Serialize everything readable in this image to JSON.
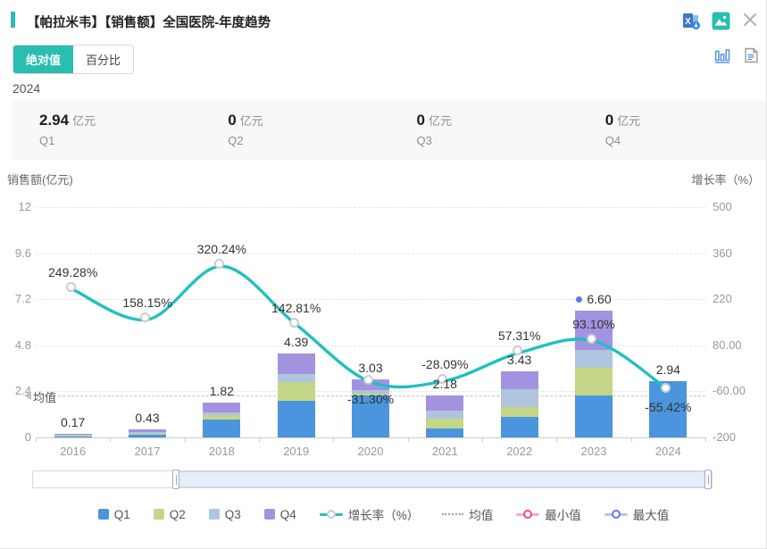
{
  "header": {
    "title": "【帕拉米韦】【销售额】全国医院-年度趋势",
    "icons": [
      "excel-export-icon",
      "image-export-icon",
      "close-icon",
      "bar-chart-view-icon",
      "report-view-icon"
    ]
  },
  "view_tabs": {
    "absolute": "绝对值",
    "percent": "百分比"
  },
  "period": {
    "year": "2024"
  },
  "summary": {
    "items": [
      {
        "value": "2.94",
        "unit": "亿元",
        "label": "Q1"
      },
      {
        "value": "0",
        "unit": "亿元",
        "label": "Q2"
      },
      {
        "value": "0",
        "unit": "亿元",
        "label": "Q3"
      },
      {
        "value": "0",
        "unit": "亿元",
        "label": "Q4"
      }
    ]
  },
  "chart_data": {
    "type": "bar",
    "title": "【帕拉米韦】【销售额】全国医院-年度趋势",
    "categories": [
      "2016",
      "2017",
      "2018",
      "2019",
      "2020",
      "2021",
      "2022",
      "2023",
      "2024"
    ],
    "series": [
      {
        "name": "Q1",
        "color": "#4a95dd",
        "values": [
          0.07,
          0.14,
          0.95,
          1.9,
          2.2,
          0.46,
          1.05,
          2.2,
          2.94
        ]
      },
      {
        "name": "Q2",
        "color": "#c4d687",
        "values": [
          0.03,
          0.06,
          0.2,
          1.0,
          0.08,
          0.5,
          0.55,
          1.45,
          0
        ]
      },
      {
        "name": "Q3",
        "color": "#aec5dd",
        "values": [
          0.03,
          0.08,
          0.17,
          0.4,
          0.2,
          0.45,
          0.93,
          0.9,
          0
        ]
      },
      {
        "name": "Q4",
        "color": "#a392e0",
        "values": [
          0.04,
          0.15,
          0.5,
          1.09,
          0.55,
          0.77,
          0.9,
          2.05,
          0
        ]
      }
    ],
    "totals": [
      0.17,
      0.43,
      1.82,
      4.39,
      3.03,
      2.18,
      3.43,
      6.6,
      2.94
    ],
    "total_labels": [
      "0.17",
      "0.43",
      "1.82",
      "4.39",
      "3.03",
      "2.18",
      "3.43",
      "6.60",
      "2.94"
    ],
    "line_series": {
      "name": "增长率（%）",
      "color": "#22c0bf",
      "values": [
        249.28,
        158.15,
        320.24,
        142.81,
        -31.3,
        -28.09,
        57.31,
        93.1,
        -55.42
      ],
      "labels": [
        "249.28%",
        "158.15%",
        "320.24%",
        "142.81%",
        "-31.30%",
        "-28.09%",
        "57.31%",
        "93.10%",
        "-55.42%"
      ],
      "label_side": [
        "above",
        "above",
        "above",
        "above",
        "below",
        "above",
        "above",
        "above",
        "below"
      ]
    },
    "left_axis": {
      "title": "销售额(亿元)",
      "min": 0,
      "max": 12,
      "ticks": [
        "12",
        "9.6",
        "7.2",
        "4.8",
        "2.4",
        "0"
      ]
    },
    "right_axis": {
      "title": "增长率（%）",
      "min": -200,
      "max": 500,
      "ticks": [
        "500",
        "360",
        "220",
        "80.00",
        "-60.00",
        "-200"
      ]
    },
    "mean_line": {
      "label": "均值",
      "value": 2.2
    },
    "max_point": {
      "category": "2023",
      "label": "6.60"
    },
    "grid": true,
    "legend_position": "bottom"
  },
  "legend": {
    "items": [
      {
        "label": "Q1",
        "type": "square",
        "color": "#4a95dd"
      },
      {
        "label": "Q2",
        "type": "square",
        "color": "#c4d687"
      },
      {
        "label": "Q3",
        "type": "square",
        "color": "#aec5dd"
      },
      {
        "label": "Q4",
        "type": "square",
        "color": "#a392e0"
      },
      {
        "label": "增长率（%）",
        "type": "line-marker",
        "color": "#22c0bf",
        "marker_border": "#c9cdd1"
      },
      {
        "label": "均值",
        "type": "dotted-line",
        "color": "#9d9d9d"
      },
      {
        "label": "最小值",
        "type": "circle-marker",
        "color": "#f0497c"
      },
      {
        "label": "最大值",
        "type": "circle-marker",
        "color": "#6577e3"
      }
    ]
  },
  "colors": {
    "accent_teal": "#2abdb1",
    "line_teal": "#22c0bf",
    "q1": "#4a95dd",
    "q2": "#c4d687",
    "q3": "#aec5dd",
    "q4": "#a392e0",
    "max_marker": "#6478e8",
    "min_marker": "#f0497c",
    "summary_bg": "#f8f8f8"
  }
}
